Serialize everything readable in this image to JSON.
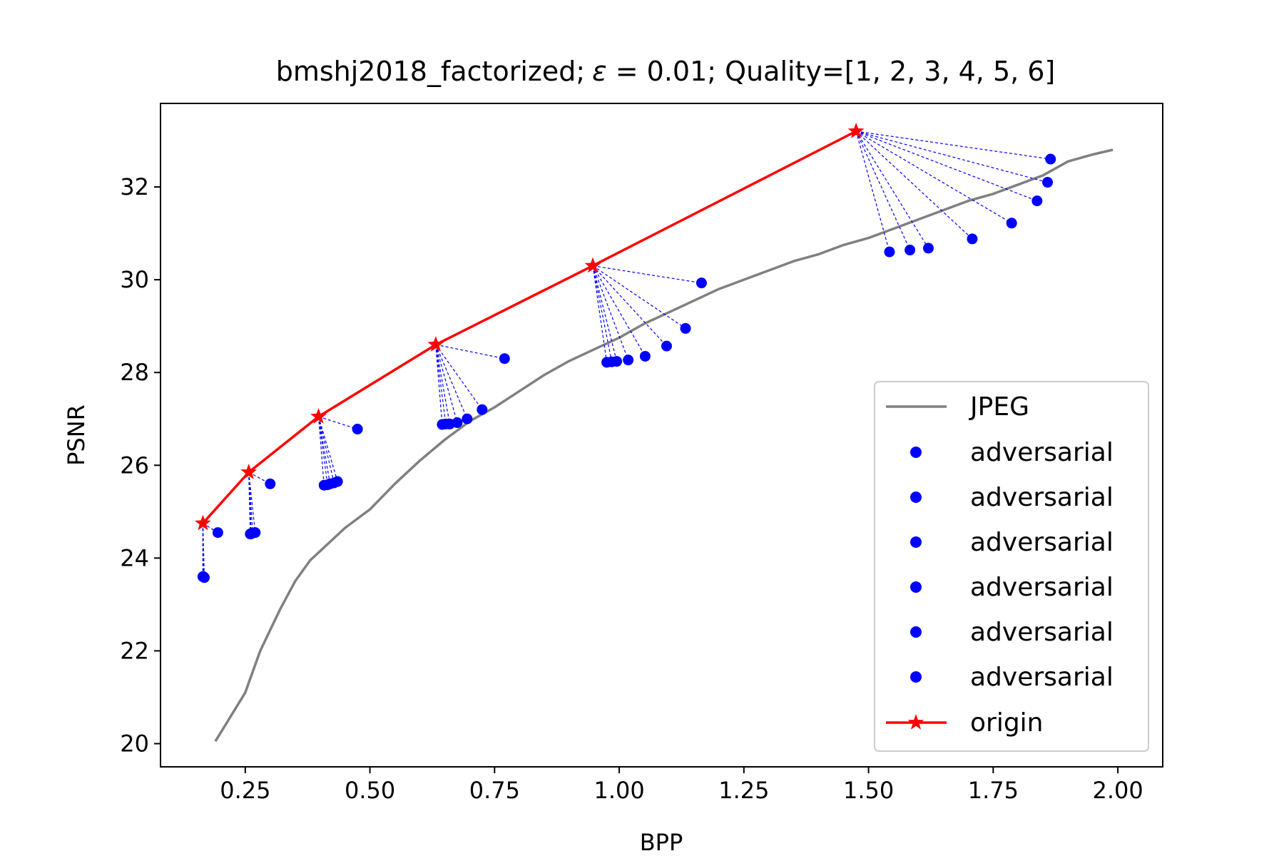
{
  "chart_data": {
    "type": "line",
    "title_prefix": "bmshj2018_factorized;",
    "title_epsilon_symbol": "ε",
    "title_epsilon_rest": " = 0.01; Quality=[1, 2, 3, 4, 5, 6]",
    "xlabel": "BPP",
    "ylabel": "PSNR",
    "xlim": [
      0.08,
      2.09
    ],
    "ylim": [
      19.5,
      33.8
    ],
    "xticks": [
      0.25,
      0.5,
      0.75,
      1.0,
      1.25,
      1.5,
      1.75,
      2.0
    ],
    "xtick_labels": [
      "0.25",
      "0.50",
      "0.75",
      "1.00",
      "1.25",
      "1.50",
      "1.75",
      "2.00"
    ],
    "yticks": [
      20,
      22,
      24,
      26,
      28,
      30,
      32
    ],
    "ytick_labels": [
      "20",
      "22",
      "24",
      "26",
      "28",
      "30",
      "32"
    ],
    "grid": false,
    "legend_position": "lower-right",
    "colors": {
      "jpeg": "#808080",
      "adversarial": "#0000ff",
      "origin": "#ff0000"
    },
    "jpeg": {
      "name": "JPEG",
      "x": [
        0.19,
        0.21,
        0.25,
        0.28,
        0.32,
        0.35,
        0.38,
        0.42,
        0.45,
        0.5,
        0.55,
        0.6,
        0.65,
        0.7,
        0.75,
        0.8,
        0.85,
        0.9,
        0.95,
        1.0,
        1.05,
        1.1,
        1.15,
        1.2,
        1.25,
        1.3,
        1.35,
        1.4,
        1.45,
        1.5,
        1.55,
        1.6,
        1.65,
        1.7,
        1.75,
        1.8,
        1.85,
        1.9,
        1.95,
        1.99
      ],
      "y": [
        20.05,
        20.4,
        21.1,
        22.0,
        22.9,
        23.5,
        23.95,
        24.35,
        24.65,
        25.05,
        25.6,
        26.1,
        26.55,
        26.95,
        27.25,
        27.6,
        27.95,
        28.25,
        28.5,
        28.75,
        29.05,
        29.3,
        29.55,
        29.8,
        30.0,
        30.2,
        30.4,
        30.55,
        30.75,
        30.9,
        31.1,
        31.3,
        31.5,
        31.7,
        31.85,
        32.05,
        32.25,
        32.55,
        32.7,
        32.8
      ]
    },
    "origin": {
      "name": "origin",
      "x": [
        0.165,
        0.257,
        0.397,
        0.632,
        0.947,
        1.475
      ],
      "y": [
        24.75,
        25.85,
        27.05,
        28.6,
        30.3,
        33.2
      ]
    },
    "adversarial_label": "adversarial",
    "adversarial": [
      {
        "x": [
          0.165,
          0.168,
          0.195,
          0.167,
          0.166,
          0.165
        ],
        "y": [
          23.6,
          23.58,
          24.55,
          23.59,
          23.6,
          23.6
        ]
      },
      {
        "x": [
          0.26,
          0.262,
          0.265,
          0.27,
          0.3,
          0.261
        ],
        "y": [
          24.52,
          24.53,
          24.54,
          24.55,
          25.6,
          24.52
        ]
      },
      {
        "x": [
          0.408,
          0.415,
          0.42,
          0.428,
          0.435,
          0.475
        ],
        "y": [
          25.57,
          25.58,
          25.6,
          25.62,
          25.65,
          26.78
        ]
      },
      {
        "x": [
          0.645,
          0.652,
          0.66,
          0.675,
          0.695,
          0.725,
          0.77
        ],
        "y": [
          26.88,
          26.89,
          26.89,
          26.92,
          27.0,
          27.2,
          28.3
        ]
      },
      {
        "x": [
          0.975,
          0.985,
          0.995,
          1.018,
          1.052,
          1.095,
          1.133,
          1.165
        ],
        "y": [
          28.22,
          28.23,
          28.24,
          28.27,
          28.35,
          28.57,
          28.95,
          29.93
        ]
      },
      {
        "x": [
          1.542,
          1.583,
          1.62,
          1.708,
          1.787,
          1.838,
          1.859,
          1.865
        ],
        "y": [
          30.6,
          30.64,
          30.68,
          30.88,
          31.22,
          31.7,
          32.1,
          32.6
        ]
      }
    ]
  }
}
